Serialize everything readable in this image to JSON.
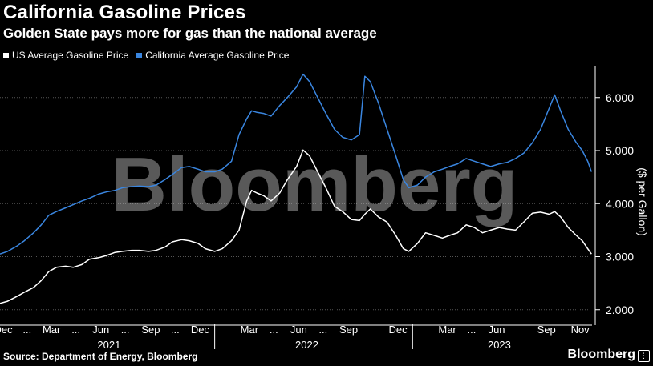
{
  "header": {
    "title": "California Gasoline Prices",
    "subtitle": "Golden State pays more for gas than the national average"
  },
  "footer": {
    "source": "Source: Department of Energy, Bloomberg",
    "brand": "Bloomberg"
  },
  "watermark": "Bloomberg",
  "colors": {
    "background": "#000000",
    "us_series": "#ffffff",
    "ca_series": "#3a86e0",
    "grid": "#555555"
  },
  "chart_data": {
    "type": "line",
    "ylabel": "($ per Gallon)",
    "ylim": [
      1.8,
      6.6
    ],
    "yticks": [
      2.0,
      3.0,
      4.0,
      5.0,
      6.0
    ],
    "ytick_labels": [
      "2.000",
      "3.000",
      "4.000",
      "5.000",
      "6.000"
    ],
    "xlim": [
      "2020-12-01",
      "2023-11-28"
    ],
    "xtick_labels": [
      {
        "label": "Dec",
        "x": "2020-12-07"
      },
      {
        "label": "...",
        "x": "2021-01-20"
      },
      {
        "label": "Mar",
        "x": "2021-03-06"
      },
      {
        "label": "...",
        "x": "2021-04-20"
      },
      {
        "label": "Jun",
        "x": "2021-06-05"
      },
      {
        "label": "...",
        "x": "2021-07-20"
      },
      {
        "label": "Sep",
        "x": "2021-09-05"
      },
      {
        "label": "...",
        "x": "2021-10-20"
      },
      {
        "label": "Dec",
        "x": "2021-12-05"
      },
      {
        "label": "Mar",
        "x": "2022-03-06"
      },
      {
        "label": "...",
        "x": "2022-04-20"
      },
      {
        "label": "Jun",
        "x": "2022-06-05"
      },
      {
        "label": "...",
        "x": "2022-07-20"
      },
      {
        "label": "Sep",
        "x": "2022-09-05"
      },
      {
        "label": "Dec",
        "x": "2022-12-05"
      },
      {
        "label": "Mar",
        "x": "2023-03-06"
      },
      {
        "label": "...",
        "x": "2023-04-20"
      },
      {
        "label": "Jun",
        "x": "2023-06-05"
      },
      {
        "label": "Sep",
        "x": "2023-09-05"
      },
      {
        "label": "Nov",
        "x": "2023-11-06"
      }
    ],
    "year_labels": [
      {
        "label": "2021",
        "x": "2021-06-20"
      },
      {
        "label": "2022",
        "x": "2022-06-20"
      },
      {
        "label": "2023",
        "x": "2023-06-10"
      }
    ],
    "year_boundaries": [
      "2022-01-01",
      "2023-01-01"
    ],
    "grid": true,
    "legend_position": "top-left",
    "series": [
      {
        "name": "US Average Gasoline Price",
        "color": "#ffffff",
        "points": [
          [
            "2020-12-01",
            2.12
          ],
          [
            "2020-12-15",
            2.16
          ],
          [
            "2021-01-01",
            2.25
          ],
          [
            "2021-01-15",
            2.33
          ],
          [
            "2021-02-01",
            2.42
          ],
          [
            "2021-02-15",
            2.55
          ],
          [
            "2021-03-01",
            2.72
          ],
          [
            "2021-03-15",
            2.8
          ],
          [
            "2021-04-01",
            2.82
          ],
          [
            "2021-04-15",
            2.8
          ],
          [
            "2021-05-01",
            2.85
          ],
          [
            "2021-05-15",
            2.95
          ],
          [
            "2021-06-01",
            2.98
          ],
          [
            "2021-06-15",
            3.02
          ],
          [
            "2021-07-01",
            3.08
          ],
          [
            "2021-07-15",
            3.1
          ],
          [
            "2021-08-01",
            3.12
          ],
          [
            "2021-08-15",
            3.12
          ],
          [
            "2021-09-01",
            3.1
          ],
          [
            "2021-09-15",
            3.12
          ],
          [
            "2021-10-01",
            3.18
          ],
          [
            "2021-10-15",
            3.28
          ],
          [
            "2021-11-01",
            3.32
          ],
          [
            "2021-11-15",
            3.3
          ],
          [
            "2021-12-01",
            3.25
          ],
          [
            "2021-12-15",
            3.15
          ],
          [
            "2022-01-01",
            3.1
          ],
          [
            "2022-01-15",
            3.15
          ],
          [
            "2022-02-01",
            3.3
          ],
          [
            "2022-02-15",
            3.5
          ],
          [
            "2022-03-01",
            4.05
          ],
          [
            "2022-03-10",
            4.25
          ],
          [
            "2022-03-20",
            4.2
          ],
          [
            "2022-04-01",
            4.15
          ],
          [
            "2022-04-15",
            4.05
          ],
          [
            "2022-05-01",
            4.2
          ],
          [
            "2022-05-15",
            4.45
          ],
          [
            "2022-06-01",
            4.7
          ],
          [
            "2022-06-13",
            5.01
          ],
          [
            "2022-06-25",
            4.9
          ],
          [
            "2022-07-10",
            4.6
          ],
          [
            "2022-07-25",
            4.3
          ],
          [
            "2022-08-10",
            3.95
          ],
          [
            "2022-08-25",
            3.85
          ],
          [
            "2022-09-10",
            3.7
          ],
          [
            "2022-09-25",
            3.68
          ],
          [
            "2022-10-05",
            3.8
          ],
          [
            "2022-10-15",
            3.9
          ],
          [
            "2022-10-30",
            3.75
          ],
          [
            "2022-11-15",
            3.65
          ],
          [
            "2022-12-01",
            3.4
          ],
          [
            "2022-12-15",
            3.15
          ],
          [
            "2022-12-25",
            3.1
          ],
          [
            "2023-01-10",
            3.25
          ],
          [
            "2023-01-25",
            3.45
          ],
          [
            "2023-02-10",
            3.4
          ],
          [
            "2023-02-25",
            3.35
          ],
          [
            "2023-03-10",
            3.4
          ],
          [
            "2023-03-25",
            3.45
          ],
          [
            "2023-04-10",
            3.6
          ],
          [
            "2023-04-25",
            3.55
          ],
          [
            "2023-05-10",
            3.45
          ],
          [
            "2023-05-25",
            3.5
          ],
          [
            "2023-06-10",
            3.55
          ],
          [
            "2023-06-25",
            3.52
          ],
          [
            "2023-07-10",
            3.5
          ],
          [
            "2023-07-25",
            3.65
          ],
          [
            "2023-08-10",
            3.82
          ],
          [
            "2023-08-25",
            3.84
          ],
          [
            "2023-09-10",
            3.8
          ],
          [
            "2023-09-20",
            3.85
          ],
          [
            "2023-10-01",
            3.75
          ],
          [
            "2023-10-15",
            3.55
          ],
          [
            "2023-10-30",
            3.4
          ],
          [
            "2023-11-10",
            3.3
          ],
          [
            "2023-11-20",
            3.15
          ],
          [
            "2023-11-27",
            3.05
          ]
        ]
      },
      {
        "name": "California Average Gasoline Price",
        "color": "#3a86e0",
        "points": [
          [
            "2020-12-01",
            3.05
          ],
          [
            "2020-12-15",
            3.1
          ],
          [
            "2021-01-01",
            3.2
          ],
          [
            "2021-01-15",
            3.3
          ],
          [
            "2021-02-01",
            3.45
          ],
          [
            "2021-02-15",
            3.6
          ],
          [
            "2021-03-01",
            3.78
          ],
          [
            "2021-03-15",
            3.85
          ],
          [
            "2021-04-01",
            3.92
          ],
          [
            "2021-04-15",
            3.98
          ],
          [
            "2021-05-01",
            4.05
          ],
          [
            "2021-05-15",
            4.1
          ],
          [
            "2021-06-01",
            4.18
          ],
          [
            "2021-06-15",
            4.22
          ],
          [
            "2021-07-01",
            4.25
          ],
          [
            "2021-07-15",
            4.3
          ],
          [
            "2021-08-01",
            4.32
          ],
          [
            "2021-08-15",
            4.33
          ],
          [
            "2021-09-01",
            4.32
          ],
          [
            "2021-09-15",
            4.35
          ],
          [
            "2021-10-01",
            4.45
          ],
          [
            "2021-10-15",
            4.55
          ],
          [
            "2021-11-01",
            4.68
          ],
          [
            "2021-11-15",
            4.7
          ],
          [
            "2021-12-01",
            4.65
          ],
          [
            "2021-12-15",
            4.6
          ],
          [
            "2022-01-01",
            4.6
          ],
          [
            "2022-01-15",
            4.65
          ],
          [
            "2022-02-01",
            4.8
          ],
          [
            "2022-02-15",
            5.3
          ],
          [
            "2022-03-01",
            5.6
          ],
          [
            "2022-03-10",
            5.75
          ],
          [
            "2022-03-20",
            5.72
          ],
          [
            "2022-04-01",
            5.7
          ],
          [
            "2022-04-15",
            5.65
          ],
          [
            "2022-05-01",
            5.85
          ],
          [
            "2022-05-15",
            6.0
          ],
          [
            "2022-06-01",
            6.2
          ],
          [
            "2022-06-13",
            6.44
          ],
          [
            "2022-06-25",
            6.3
          ],
          [
            "2022-07-10",
            6.0
          ],
          [
            "2022-07-25",
            5.7
          ],
          [
            "2022-08-10",
            5.4
          ],
          [
            "2022-08-25",
            5.25
          ],
          [
            "2022-09-10",
            5.2
          ],
          [
            "2022-09-25",
            5.3
          ],
          [
            "2022-10-05",
            6.4
          ],
          [
            "2022-10-15",
            6.3
          ],
          [
            "2022-10-30",
            5.9
          ],
          [
            "2022-11-15",
            5.4
          ],
          [
            "2022-12-01",
            4.9
          ],
          [
            "2022-12-15",
            4.45
          ],
          [
            "2022-12-25",
            4.3
          ],
          [
            "2023-01-10",
            4.35
          ],
          [
            "2023-01-25",
            4.5
          ],
          [
            "2023-02-10",
            4.6
          ],
          [
            "2023-02-25",
            4.65
          ],
          [
            "2023-03-10",
            4.7
          ],
          [
            "2023-03-25",
            4.75
          ],
          [
            "2023-04-10",
            4.85
          ],
          [
            "2023-04-25",
            4.8
          ],
          [
            "2023-05-10",
            4.75
          ],
          [
            "2023-05-25",
            4.7
          ],
          [
            "2023-06-10",
            4.75
          ],
          [
            "2023-06-25",
            4.78
          ],
          [
            "2023-07-10",
            4.85
          ],
          [
            "2023-07-25",
            4.95
          ],
          [
            "2023-08-10",
            5.15
          ],
          [
            "2023-08-25",
            5.4
          ],
          [
            "2023-09-10",
            5.8
          ],
          [
            "2023-09-20",
            6.05
          ],
          [
            "2023-10-01",
            5.75
          ],
          [
            "2023-10-15",
            5.4
          ],
          [
            "2023-10-30",
            5.15
          ],
          [
            "2023-11-10",
            5.0
          ],
          [
            "2023-11-20",
            4.8
          ],
          [
            "2023-11-27",
            4.6
          ]
        ]
      }
    ]
  }
}
